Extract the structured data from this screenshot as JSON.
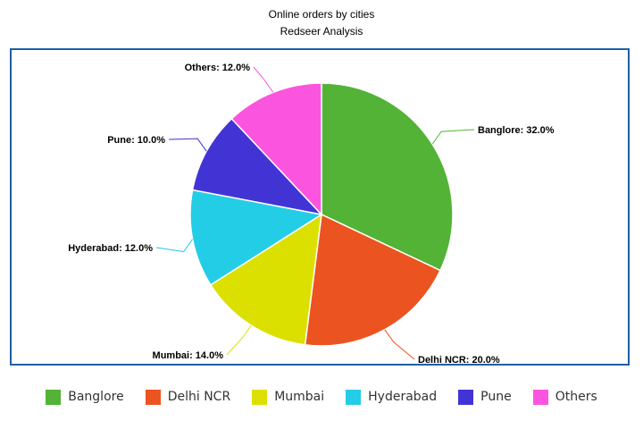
{
  "chart_data": {
    "type": "pie",
    "title": "Online orders by cities",
    "subtitle": "Redseer Analysis",
    "slices": [
      {
        "label": "Banglore",
        "value": 32.0,
        "color": "#52b336",
        "data_label": "Banglore: 32.0%"
      },
      {
        "label": "Delhi NCR",
        "value": 20.0,
        "color": "#eb5420",
        "data_label": "Delhi NCR: 20.0%"
      },
      {
        "label": "Mumbai",
        "value": 14.0,
        "color": "#dce000",
        "data_label": "Mumbai: 14.0%"
      },
      {
        "label": "Hyderabad",
        "value": 12.0,
        "color": "#24cde6",
        "data_label": "Hyderabad: 12.0%"
      },
      {
        "label": "Pune",
        "value": 10.0,
        "color": "#4234d4",
        "data_label": "Pune: 10.0%"
      },
      {
        "label": "Others",
        "value": 12.0,
        "color": "#fb55e0",
        "data_label": "Others: 12.0%"
      }
    ],
    "legend_position": "bottom",
    "frame_color": "#1f5fa6"
  }
}
